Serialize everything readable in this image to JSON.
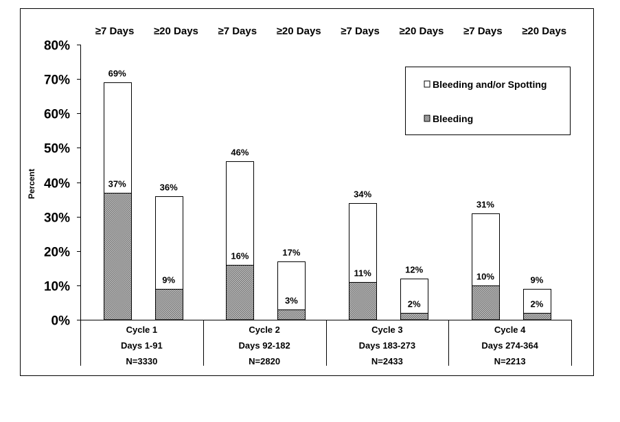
{
  "chart_data": {
    "type": "bar",
    "stacked": true,
    "title": "",
    "ylabel": "Percent",
    "ylim": [
      0,
      80
    ],
    "y_ticks": [
      "0%",
      "10%",
      "20%",
      "30%",
      "40%",
      "50%",
      "60%",
      "70%",
      "80%"
    ],
    "groups": [
      {
        "label_lines": [
          "Cycle 1",
          "Days 1-91",
          "N=3330"
        ]
      },
      {
        "label_lines": [
          "Cycle 2",
          "Days 92-182",
          "N=2820"
        ]
      },
      {
        "label_lines": [
          "Cycle 3",
          "Days 183-273",
          "N=2433"
        ]
      },
      {
        "label_lines": [
          "Cycle 4",
          "Days 274-364",
          "N=2213"
        ]
      }
    ],
    "bar_headers": [
      "≥7 Days",
      "≥20 Days"
    ],
    "bars": [
      {
        "group": 0,
        "header": "≥7 Days",
        "bleeding": 37,
        "bleeding_label": "37%",
        "total": 69,
        "total_label": "69%"
      },
      {
        "group": 0,
        "header": "≥20 Days",
        "bleeding": 9,
        "bleeding_label": "9%",
        "total": 36,
        "total_label": "36%"
      },
      {
        "group": 1,
        "header": "≥7 Days",
        "bleeding": 16,
        "bleeding_label": "16%",
        "total": 46,
        "total_label": "46%"
      },
      {
        "group": 1,
        "header": "≥20 Days",
        "bleeding": 3,
        "bleeding_label": "3%",
        "total": 17,
        "total_label": "17%"
      },
      {
        "group": 2,
        "header": "≥7 Days",
        "bleeding": 11,
        "bleeding_label": "11%",
        "total": 34,
        "total_label": "34%"
      },
      {
        "group": 2,
        "header": "≥20 Days",
        "bleeding": 2,
        "bleeding_label": "2%",
        "total": 12,
        "total_label": "12%"
      },
      {
        "group": 3,
        "header": "≥7 Days",
        "bleeding": 10,
        "bleeding_label": "10%",
        "total": 31,
        "total_label": "31%"
      },
      {
        "group": 3,
        "header": "≥20 Days",
        "bleeding": 2,
        "bleeding_label": "2%",
        "total": 9,
        "total_label": "9%"
      }
    ],
    "series": [
      {
        "name": "Bleeding and/or Spotting",
        "color": "#ffffff"
      },
      {
        "name": "Bleeding",
        "color": "#9a9a9a",
        "pattern": "dotted"
      }
    ],
    "legend_position": "top-right",
    "grid": false
  }
}
